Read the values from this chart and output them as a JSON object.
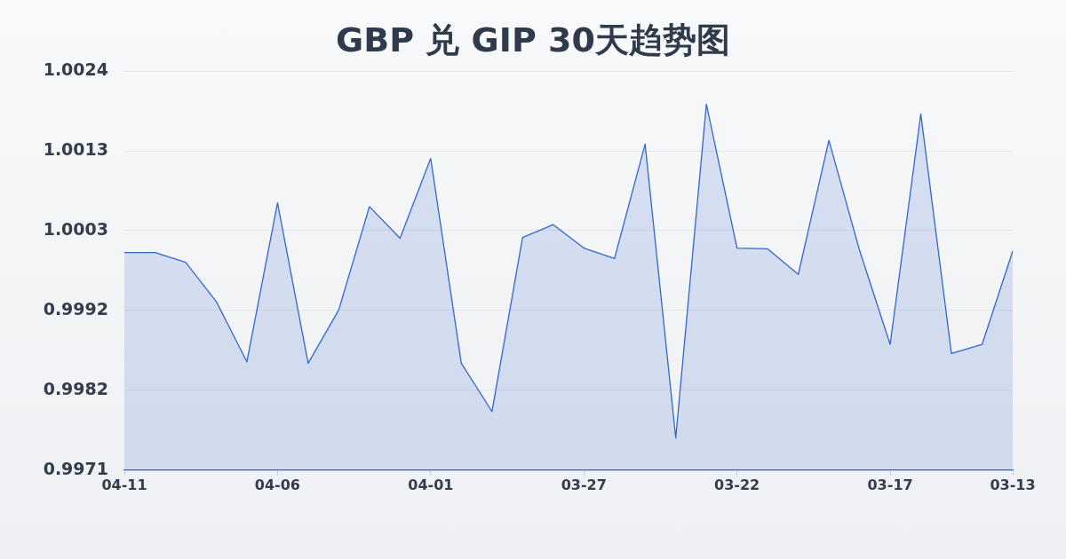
{
  "chart_data": {
    "type": "area",
    "title": "GBP 兑 GIP 30天趋势图",
    "categories": [
      "04-11",
      null,
      null,
      null,
      null,
      "04-06",
      null,
      null,
      null,
      null,
      "04-01",
      null,
      null,
      null,
      null,
      "03-27",
      null,
      null,
      null,
      null,
      "03-22",
      null,
      null,
      null,
      null,
      "03-17",
      null,
      null,
      null,
      "03-13"
    ],
    "values": [
      0.99999,
      0.99999,
      0.99986,
      0.99934,
      0.99854,
      1.00065,
      0.99852,
      0.99923,
      1.0006,
      1.00018,
      1.00124,
      0.99852,
      0.99788,
      1.00019,
      1.00036,
      1.00005,
      0.99991,
      1.00143,
      0.99753,
      1.00196,
      1.00005,
      1.00004,
      0.9997,
      1.00148,
      1.00002,
      0.99877,
      1.00183,
      0.99865,
      0.99877,
      1.00001
    ],
    "color": "#3366cc",
    "ylim": [
      0.9971,
      1.0024
    ],
    "yticks": [
      0.9971,
      {
        "value": 0.99816,
        "label": "0.9982"
      },
      {
        "value": 0.99922,
        "label": "0.9992"
      },
      {
        "value": 1.00028,
        "label": "1.0003"
      },
      {
        "value": 1.00134,
        "label": "1.0013"
      },
      1.0024
    ],
    "grid": "y",
    "legend": false,
    "marker": "none",
    "line_style": "solid"
  }
}
